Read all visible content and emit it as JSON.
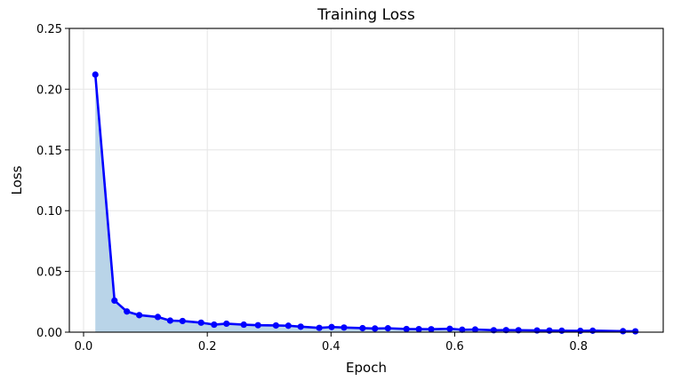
{
  "chart_data": {
    "type": "line",
    "title": "Training Loss",
    "xlabel": "Epoch",
    "ylabel": "Loss",
    "xlim": [
      -0.023,
      0.937
    ],
    "ylim": [
      0.0,
      0.25
    ],
    "xticks": [
      0.0,
      0.2,
      0.4,
      0.6,
      0.8
    ],
    "xtick_labels": [
      "0.0",
      "0.2",
      "0.4",
      "0.6",
      "0.8"
    ],
    "yticks": [
      0.0,
      0.05,
      0.1,
      0.15,
      0.2,
      0.25
    ],
    "ytick_labels": [
      "0.00",
      "0.05",
      "0.10",
      "0.15",
      "0.20",
      "0.25"
    ],
    "grid": true,
    "legend": null,
    "fill_under_curve": true,
    "series": [
      {
        "name": "Training Loss",
        "color": "#0000ff",
        "fill_color": "#b9d4e8",
        "marker": "circle",
        "x": [
          0.019,
          0.05,
          0.07,
          0.09,
          0.12,
          0.14,
          0.16,
          0.19,
          0.211,
          0.231,
          0.259,
          0.282,
          0.311,
          0.331,
          0.351,
          0.381,
          0.401,
          0.421,
          0.451,
          0.471,
          0.492,
          0.522,
          0.542,
          0.562,
          0.592,
          0.612,
          0.633,
          0.663,
          0.683,
          0.703,
          0.733,
          0.753,
          0.773,
          0.803,
          0.823,
          0.872,
          0.892
        ],
        "y": [
          0.212,
          0.026,
          0.017,
          0.014,
          0.0125,
          0.0095,
          0.0092,
          0.0078,
          0.0062,
          0.007,
          0.0062,
          0.0057,
          0.0055,
          0.0053,
          0.0045,
          0.0035,
          0.0042,
          0.0038,
          0.0033,
          0.003,
          0.0032,
          0.0026,
          0.0025,
          0.0024,
          0.0028,
          0.002,
          0.0022,
          0.0016,
          0.0017,
          0.0016,
          0.0014,
          0.0013,
          0.0012,
          0.0011,
          0.0012,
          0.0008,
          0.0007
        ]
      }
    ]
  }
}
